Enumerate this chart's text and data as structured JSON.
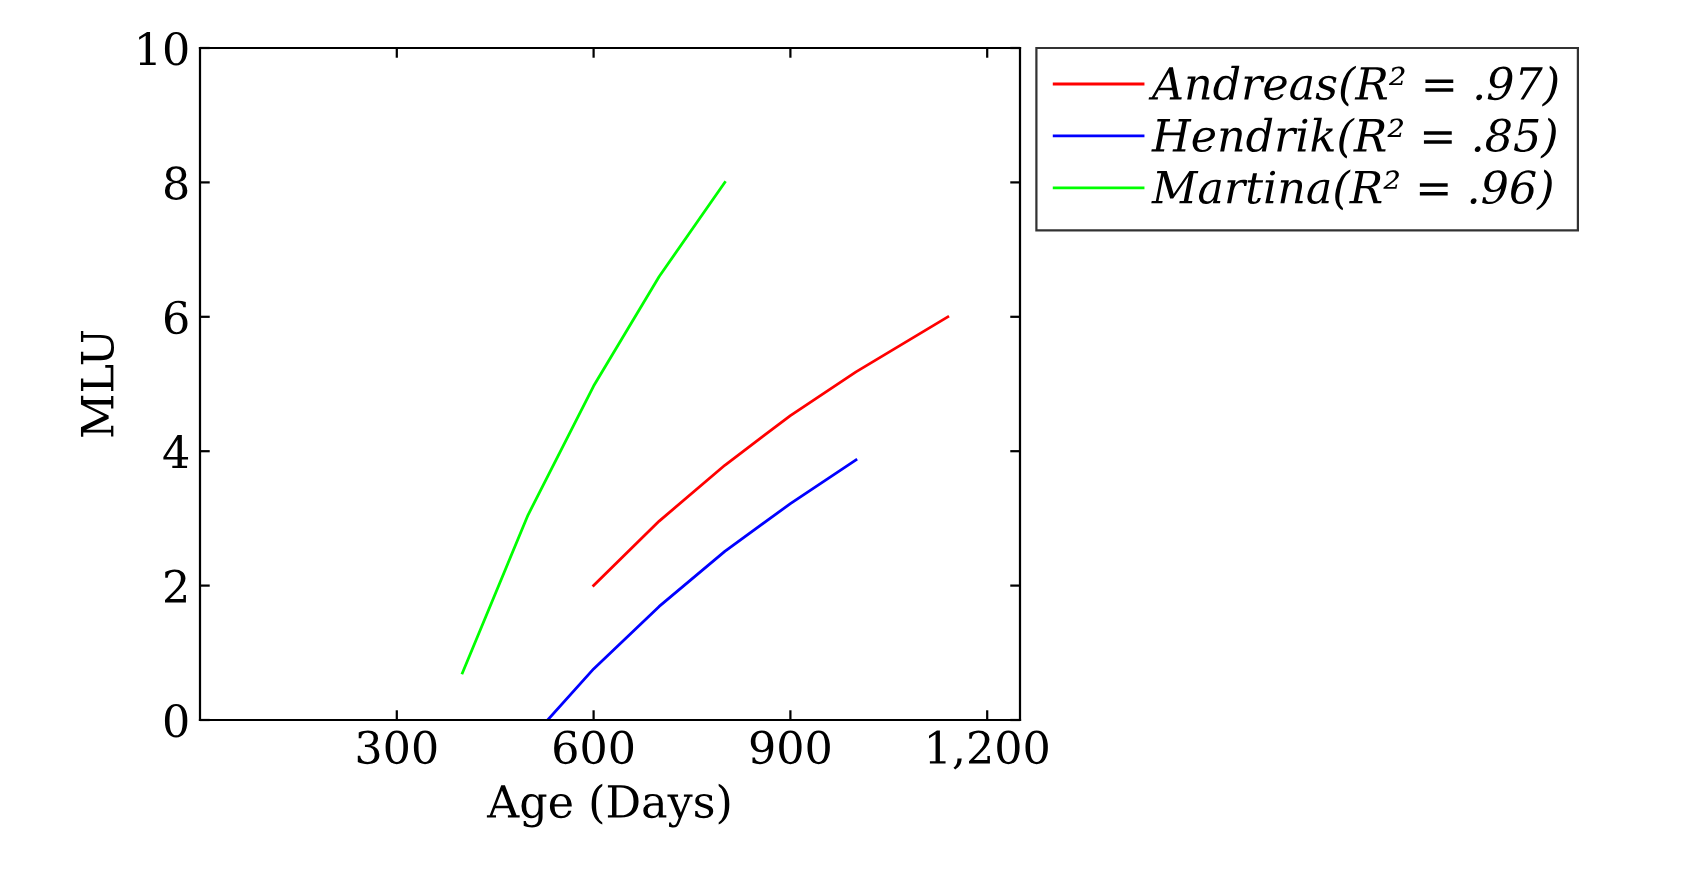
{
  "chart_data": {
    "type": "line",
    "xlabel": "Age (Days)",
    "ylabel": "MLU",
    "xlim": [
      0,
      1250
    ],
    "ylim": [
      0,
      10
    ],
    "xticks": [
      300,
      600,
      900,
      {
        "value": 1200,
        "label": "1,200"
      }
    ],
    "yticks": [
      0,
      2,
      4,
      6,
      8,
      10
    ],
    "grid": false,
    "legend": "top right",
    "marker": "none",
    "line_style": "solid",
    "series": [
      {
        "name": "Andreas(R² = .97)",
        "color": "#ff0000",
        "x": [
          600,
          700,
          800,
          900,
          1000,
          1140
        ],
        "values": [
          2.0,
          2.96,
          3.79,
          4.53,
          5.18,
          6.0
        ]
      },
      {
        "name": "Hendrik(R² = .85)",
        "color": "#0000ff",
        "x": [
          530,
          600,
          700,
          800,
          900,
          1000
        ],
        "values": [
          0,
          0.76,
          1.69,
          2.51,
          3.22,
          3.87
        ]
      },
      {
        "name": "Martina(R² = .96)",
        "color": "#00ff00",
        "x": [
          400,
          500,
          600,
          700,
          800
        ],
        "values": [
          0.7,
          3.05,
          4.97,
          6.6,
          8.0
        ]
      }
    ]
  }
}
